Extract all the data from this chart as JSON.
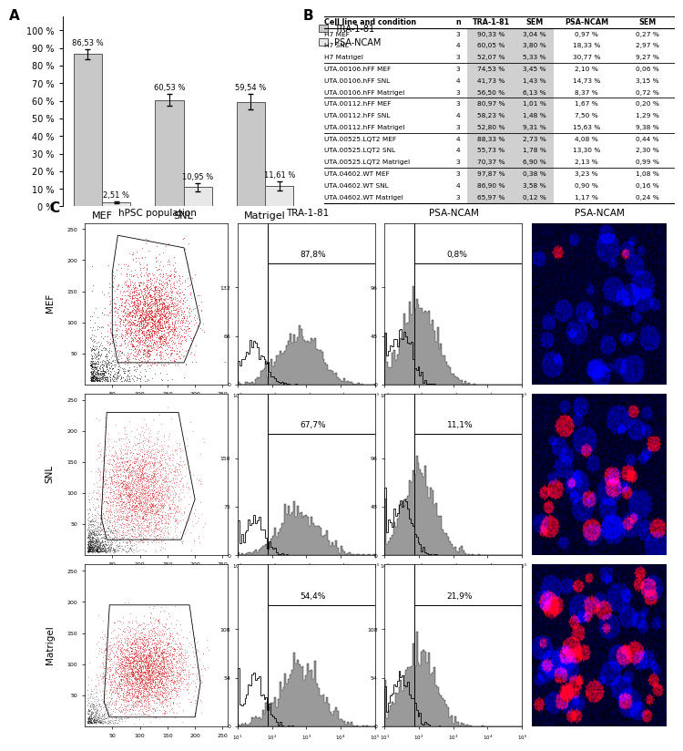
{
  "bar_groups": [
    "MEF",
    "SNL",
    "Matrigel"
  ],
  "tra_values": [
    86.53,
    60.53,
    59.54
  ],
  "psa_values": [
    2.51,
    10.95,
    11.61
  ],
  "tra_errors": [
    3.0,
    3.5,
    4.5
  ],
  "psa_errors": [
    0.5,
    2.5,
    2.5
  ],
  "bar_color_tra": "#c8c8c8",
  "bar_color_psa": "#e8e8e8",
  "bar_edge_color": "#555555",
  "yticks": [
    0,
    10,
    20,
    30,
    40,
    50,
    60,
    70,
    80,
    90,
    100
  ],
  "ytick_labels": [
    "0 %",
    "10 %",
    "20 %",
    "30 %",
    "40 %",
    "50 %",
    "60 %",
    "70 %",
    "80 %",
    "90 %",
    "100 %"
  ],
  "legend_labels": [
    "TRA-1-81",
    "PSA-NCAM"
  ],
  "table_headers": [
    "Cell line and condition",
    "n",
    "TRA-1-81",
    "SEM",
    "PSA-NCAM",
    "SEM"
  ],
  "table_rows": [
    [
      "H7 MEF",
      "3",
      "90,33 %",
      "3,04 %",
      "0,97 %",
      "0,27 %"
    ],
    [
      "H7 SNL",
      "4",
      "60,05 %",
      "3,80 %",
      "18,33 %",
      "2,97 %"
    ],
    [
      "H7 Matrigel",
      "3",
      "52,07 %",
      "5,33 %",
      "30,77 %",
      "9,27 %"
    ],
    [
      "UTA.00106.hFF MEF",
      "3",
      "74,53 %",
      "3,45 %",
      "2,10 %",
      "0,06 %"
    ],
    [
      "UTA.00106.hFF SNL",
      "4",
      "41,73 %",
      "1,43 %",
      "14,73 %",
      "3,15 %"
    ],
    [
      "UTA.00106.hFF Matrigel",
      "3",
      "56,50 %",
      "6,13 %",
      "8,37 %",
      "0,72 %"
    ],
    [
      "UTA.00112.hFF MEF",
      "3",
      "80,97 %",
      "1,01 %",
      "1,67 %",
      "0,20 %"
    ],
    [
      "UTA.00112.hFF SNL",
      "4",
      "58,23 %",
      "1,48 %",
      "7,50 %",
      "1,29 %"
    ],
    [
      "UTA.00112.hFF Matrigel",
      "3",
      "52,80 %",
      "9,31 %",
      "15,63 %",
      "9,38 %"
    ],
    [
      "UTA.00525.LQT2 MEF",
      "4",
      "88,33 %",
      "2,73 %",
      "4,08 %",
      "0,44 %"
    ],
    [
      "UTA.00525.LQT2 SNL",
      "4",
      "55,73 %",
      "1,78 %",
      "13,30 %",
      "2,30 %"
    ],
    [
      "UTA.00525.LQT2 Matrigel",
      "3",
      "70,37 %",
      "6,90 %",
      "2,13 %",
      "0,99 %"
    ],
    [
      "UTA.04602.WT MEF",
      "3",
      "97,87 %",
      "0,38 %",
      "3,23 %",
      "1,08 %"
    ],
    [
      "UTA.04602.WT SNL",
      "4",
      "86,90 %",
      "3,58 %",
      "0,90 %",
      "0,16 %"
    ],
    [
      "UTA.04602.WT Matrigel",
      "3",
      "65,97 %",
      "0,12 %",
      "1,17 %",
      "0,24 %"
    ]
  ],
  "row_group_borders": [
    3,
    6,
    9,
    12
  ],
  "tra_percentages": [
    "87,8%",
    "67,7%",
    "54,4%"
  ],
  "psa_percentages": [
    "0,8%",
    "11,1%",
    "21,9%"
  ],
  "row_labels": [
    "MEF",
    "SNL",
    "Matrigel"
  ],
  "col_headers": [
    "hPSC population",
    "TRA-1-81",
    "PSA-NCAM",
    "PSA-NCAM"
  ],
  "scatter_gate_colors": [
    "#cc0000",
    "#cc0000",
    "#cc0000"
  ],
  "hist_fill_color": "#888888",
  "fluor_colors_mef": [
    "#0000cc",
    "#000088"
  ],
  "fluor_colors_snl": [
    "#220055",
    "#cc2244"
  ],
  "fluor_colors_matrigel": [
    "#440066",
    "#ee3366"
  ]
}
